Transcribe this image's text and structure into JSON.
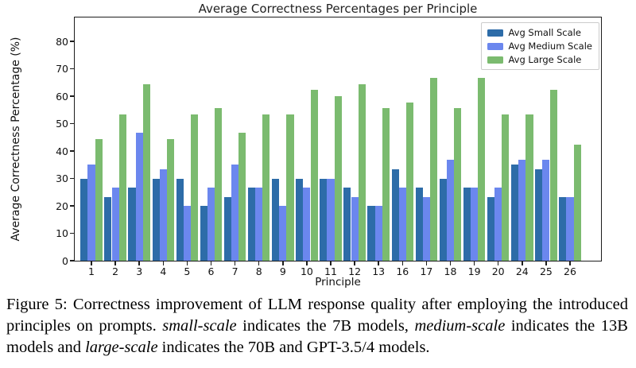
{
  "chart_data": {
    "type": "bar",
    "title": "Average Correctness Percentages per Principle",
    "xlabel": "Principle",
    "ylabel": "Average Correctness Percentage (%)",
    "categories": [
      "1",
      "2",
      "3",
      "4",
      "5",
      "6",
      "7",
      "8",
      "9",
      "10",
      "11",
      "12",
      "13",
      "16",
      "17",
      "18",
      "19",
      "20",
      "24",
      "25",
      "26"
    ],
    "series": [
      {
        "name": "Avg Small Scale",
        "color": "#2d6ca8",
        "values": [
          30,
          23.3,
          26.7,
          30,
          30,
          20,
          23.3,
          26.7,
          30,
          30,
          30,
          26.7,
          20,
          33.3,
          26.7,
          30,
          26.7,
          23.3,
          35,
          33.3,
          23.3
        ]
      },
      {
        "name": "Avg Medium Scale",
        "color": "#6b87ee",
        "values": [
          35,
          26.7,
          46.7,
          33.3,
          20,
          26.7,
          35,
          26.7,
          20,
          26.7,
          30,
          23.3,
          20,
          26.7,
          23.3,
          36.7,
          26.7,
          26.7,
          36.7,
          36.7,
          23.3
        ]
      },
      {
        "name": "Avg Large Scale",
        "color": "#7bbb6f",
        "values": [
          44.4,
          53.3,
          64.4,
          44.4,
          53.3,
          55.6,
          46.7,
          53.3,
          53.3,
          62.2,
          60,
          64.4,
          55.6,
          57.8,
          66.7,
          55.6,
          66.7,
          53.3,
          53.3,
          62.2,
          42.2
        ]
      }
    ],
    "ylim": [
      0,
      89.3
    ],
    "yticks": [
      0,
      10,
      20,
      30,
      40,
      50,
      60,
      70,
      80
    ],
    "grid": false,
    "legend_position": "upper right",
    "axis_color": "#1c1c1c",
    "legend_border_color": "#cccccc"
  },
  "caption": {
    "segments": [
      {
        "text": "Figure 5: Correctness improvement of LLM response quality after employing the introduced principles on prompts. ",
        "italic": false
      },
      {
        "text": "small-scale",
        "italic": true
      },
      {
        "text": " indicates the 7B models, ",
        "italic": false
      },
      {
        "text": "medium-scale",
        "italic": true
      },
      {
        "text": " indicates the 13B models and ",
        "italic": false
      },
      {
        "text": "large-scale",
        "italic": true
      },
      {
        "text": " indicates the 70B and GPT-3.5/4 models.",
        "italic": false
      }
    ]
  }
}
